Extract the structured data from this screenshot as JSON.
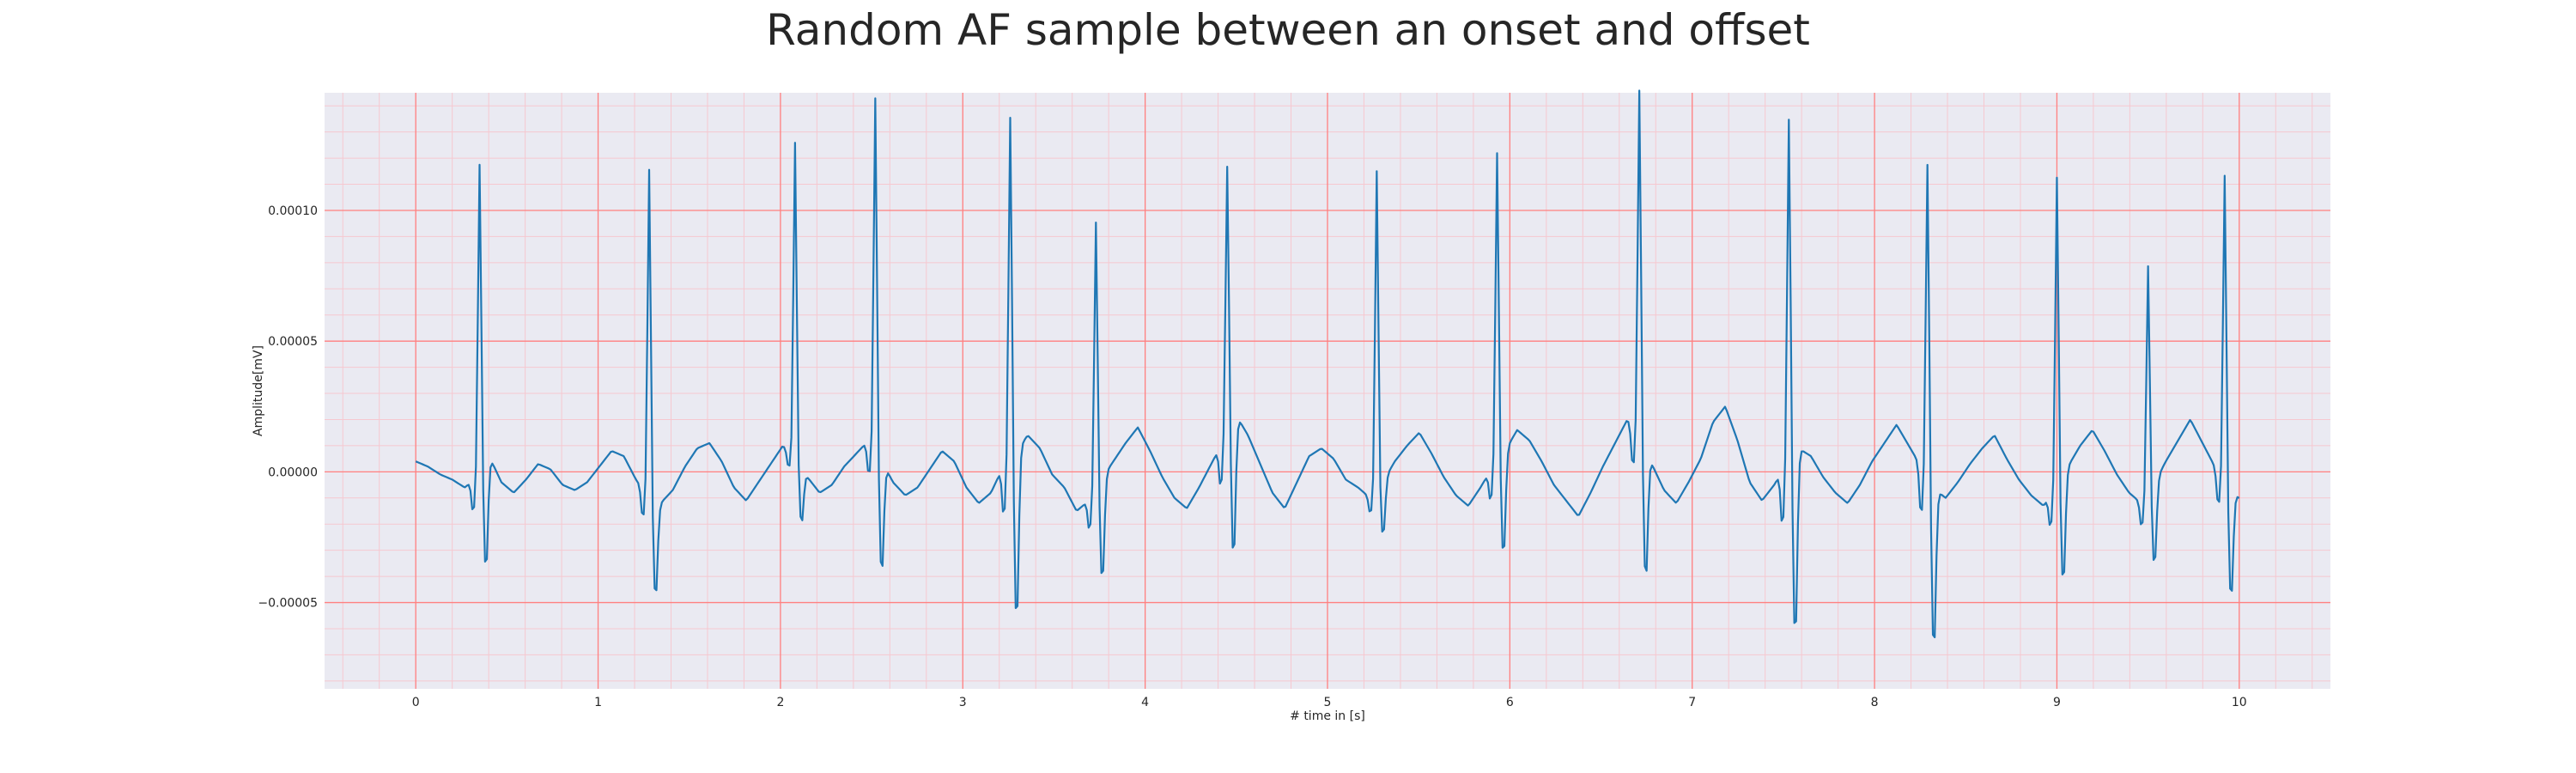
{
  "chart_data": {
    "type": "line",
    "title": "Random AF sample between an onset and offset",
    "xlabel": "# time in [s]",
    "ylabel": "Amplitude[mV]",
    "xlim": [
      -0.5,
      10.5
    ],
    "ylim": [
      -8.3e-05,
      0.000145
    ],
    "xticks": [
      0,
      1,
      2,
      3,
      4,
      5,
      6,
      7,
      8,
      9,
      10
    ],
    "xtick_labels": [
      "0",
      "1",
      "2",
      "3",
      "4",
      "5",
      "6",
      "7",
      "8",
      "9",
      "10"
    ],
    "yticks": [
      -5e-05,
      0.0,
      5e-05,
      0.0001
    ],
    "ytick_labels": [
      "−0.00005",
      "0.00000",
      "0.00005",
      "0.00010"
    ],
    "grid": true,
    "minor_grid": true,
    "colors": {
      "line": "#1f77b4",
      "plot_bg": "#eaeaf2",
      "major_grid": "#ff8080",
      "minor_grid": "#f6c8d0"
    },
    "series": [
      {
        "sample_rate_hz": 100,
        "x_start": 0.0,
        "r_peaks": [
          [
            0.35,
            0.000118,
            -4.2e-05
          ],
          [
            1.28,
            0.000125,
            -3.8e-05
          ],
          [
            2.08,
            0.00012,
            -2.2e-05
          ],
          [
            2.52,
            0.000135,
            -4.4e-05
          ],
          [
            3.26,
            0.000131,
            -6.6e-05
          ],
          [
            3.73,
            0.000102,
            -4e-05
          ],
          [
            4.45,
            0.000102,
            -5.4e-05
          ],
          [
            5.27,
            0.000122,
            -2.1e-05
          ],
          [
            5.93,
            0.000118,
            -4e-05
          ],
          [
            6.71,
            0.000133,
            -5e-05
          ],
          [
            7.53,
            0.000131,
            -7.2e-05
          ],
          [
            8.29,
            0.00012,
            -6.3e-05
          ],
          [
            9.0,
            0.000118,
            -4.2e-05
          ],
          [
            9.5,
            8.7e-05,
            -3.2e-05
          ],
          [
            9.92,
            0.000118,
            -4.2e-05
          ]
        ],
        "baseline_noise": [
          4e-06,
          2e-06,
          -1e-06,
          -3e-06,
          -6e-06,
          -2e-06,
          6e-06,
          -4e-06,
          -8e-06,
          -3e-06,
          3e-06,
          1e-06,
          -5e-06,
          -7e-06,
          -4e-06,
          2e-06,
          8e-06,
          6e-06,
          -3e-06,
          -9e-06,
          -1.2e-05,
          -7e-06,
          2e-06,
          9e-06,
          1.1e-05,
          4e-06,
          -6e-06,
          -1.1e-05,
          -4e-06,
          3e-06,
          1e-05,
          6e-06,
          -2e-06,
          -8e-06,
          -5e-06,
          2e-06,
          7e-06,
          1.2e-05,
          5e-06,
          -4e-06,
          -9e-06,
          -6e-06,
          1e-06,
          8e-06,
          4e-06,
          -6e-06,
          -1.2e-05,
          -8e-06,
          2e-06,
          7e-06,
          1.4e-05,
          9e-06,
          -1e-06,
          -6e-06,
          -1.5e-05,
          -1.1e-05,
          -3e-06,
          4e-06,
          1.1e-05,
          1.7e-05,
          8e-06,
          -2e-06,
          -1e-05,
          -1.4e-05,
          -6e-06,
          3e-06,
          1.2e-05,
          2.2e-05,
          1.4e-05,
          3e-06,
          -8e-06,
          -1.4e-05,
          -4e-06,
          6e-06,
          9e-06,
          5e-06,
          -3e-06,
          -6e-06,
          -1e-05,
          -4e-06,
          4e-06,
          1e-05,
          1.5e-05,
          7e-06,
          -2e-06,
          -9e-06,
          -1.3e-05,
          -6e-06,
          2e-06,
          8e-06,
          1.6e-05,
          1.2e-05,
          4e-06,
          -5e-06,
          -1.1e-05,
          -1.7e-05,
          -8e-06,
          2e-06,
          1.1e-05,
          2e-05,
          1.3e-05,
          3e-06,
          -7e-06,
          -1.2e-05,
          -4e-06,
          5e-06,
          1.9e-05,
          2.5e-05,
          1.2e-05,
          -4e-06,
          -1.1e-05,
          -5e-06,
          3e-06,
          9e-06,
          6e-06,
          -2e-06,
          -8e-06,
          -1.2e-05,
          -5e-06,
          4e-06,
          1.1e-05,
          1.8e-05,
          1e-05,
          2e-06,
          -6e-06,
          -1e-05,
          -4e-06,
          3e-06,
          9e-06,
          1.4e-05,
          5e-06,
          -3e-06,
          -9e-06,
          -1.3e-05,
          -6e-06,
          2e-06,
          1e-05,
          1.6e-05,
          8e-06,
          -1e-06,
          -8e-06,
          -1.2e-05,
          -5e-06,
          4e-06,
          1.2e-05,
          2e-05,
          1.1e-05,
          2e-06,
          -6e-06,
          -1e-05
        ]
      }
    ]
  }
}
